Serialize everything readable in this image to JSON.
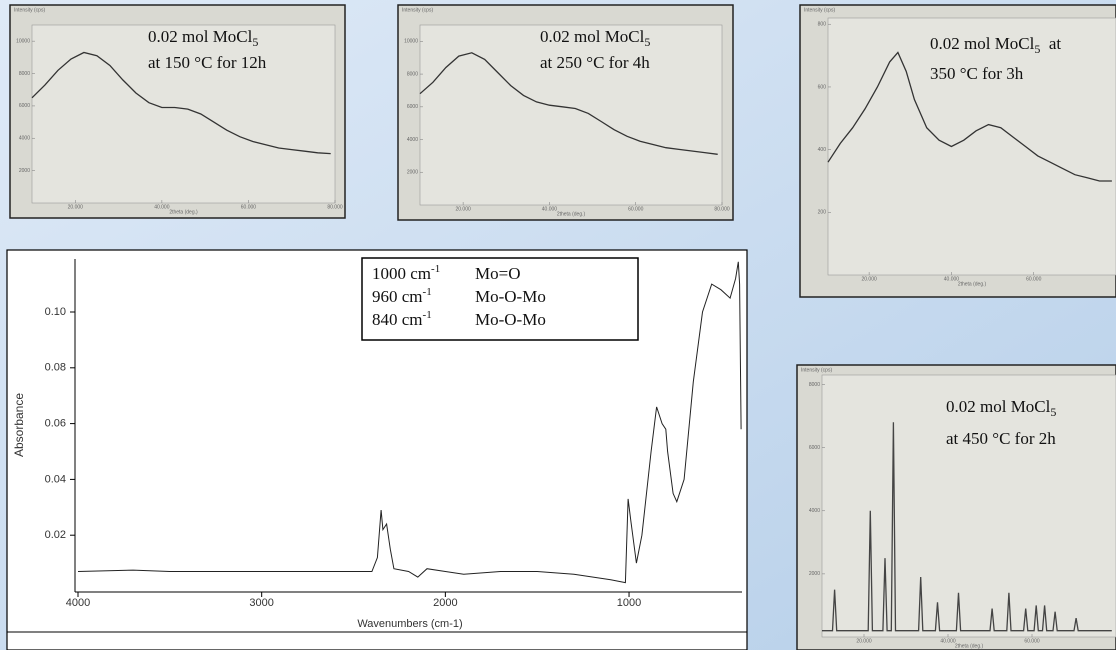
{
  "chart_data": [
    {
      "type": "line",
      "annotation": [
        [
          {
            "text": "0.02 mol MoCl"
          },
          {
            "sub": "5"
          }
        ],
        [
          {
            "text": "at 150 °C for 12h"
          }
        ]
      ],
      "x_label": "2theta (deg.)",
      "y_label": "Intensity (cps)",
      "color": "#333333",
      "xlim": [
        10,
        80
      ],
      "ylim": [
        0,
        11000
      ],
      "xticks": [
        {
          "value": 20,
          "label": "20.000"
        },
        {
          "value": 40,
          "label": "40.000"
        },
        {
          "value": 60,
          "label": "60.000"
        },
        {
          "value": 80,
          "label": "80.000"
        }
      ],
      "yticks": [
        2000,
        4000,
        6000,
        8000,
        10000
      ],
      "x": [
        10,
        13,
        16,
        19,
        22,
        25,
        28,
        31,
        34,
        37,
        40,
        43,
        46,
        49,
        52,
        55,
        58,
        61,
        64,
        67,
        70,
        73,
        76,
        79
      ],
      "values": [
        6500,
        7300,
        8200,
        8900,
        9300,
        9100,
        8500,
        7600,
        6800,
        6200,
        5900,
        5900,
        5800,
        5500,
        5000,
        4500,
        4100,
        3800,
        3600,
        3400,
        3300,
        3200,
        3100,
        3050
      ]
    },
    {
      "type": "line",
      "annotation": [
        [
          {
            "text": "0.02 mol MoCl"
          },
          {
            "sub": "5"
          }
        ],
        [
          {
            "text": "at 250 °C for 4h"
          }
        ]
      ],
      "x_label": "2theta (deg.)",
      "y_label": "Intensity (cps)",
      "color": "#333333",
      "xlim": [
        10,
        80
      ],
      "ylim": [
        0,
        11000
      ],
      "xticks": [
        {
          "value": 20,
          "label": "20.000"
        },
        {
          "value": 40,
          "label": "40.000"
        },
        {
          "value": 60,
          "label": "60.000"
        },
        {
          "value": 80,
          "label": "80.000"
        }
      ],
      "yticks": [
        2000,
        4000,
        6000,
        8000,
        10000
      ],
      "x": [
        10,
        13,
        16,
        19,
        22,
        25,
        28,
        31,
        34,
        37,
        40,
        43,
        46,
        49,
        52,
        55,
        58,
        61,
        64,
        67,
        70,
        73,
        76,
        79
      ],
      "values": [
        6800,
        7500,
        8400,
        9100,
        9300,
        8900,
        8100,
        7300,
        6700,
        6300,
        6100,
        6000,
        5900,
        5600,
        5100,
        4600,
        4200,
        3900,
        3700,
        3500,
        3400,
        3300,
        3200,
        3100
      ]
    },
    {
      "type": "line",
      "annotation": [
        [
          {
            "text": "0.02 mol MoCl"
          },
          {
            "sub": "5"
          },
          {
            "text": "  at"
          }
        ],
        [
          {
            "text": "350 °C for 3h"
          }
        ]
      ],
      "x_label": "2theta (deg.)",
      "y_label": "Intensity (cps)",
      "color": "#333333",
      "xlim": [
        10,
        80
      ],
      "ylim": [
        0,
        820
      ],
      "xticks": [
        {
          "value": 20,
          "label": "20.000"
        },
        {
          "value": 40,
          "label": "40.000"
        },
        {
          "value": 60,
          "label": "60.000"
        }
      ],
      "yticks": [
        200,
        400,
        600,
        800
      ],
      "x": [
        10,
        13,
        16,
        19,
        22,
        25,
        27,
        29,
        31,
        34,
        37,
        40,
        43,
        46,
        49,
        52,
        55,
        58,
        61,
        64,
        67,
        70,
        73,
        76,
        79
      ],
      "values": [
        360,
        420,
        470,
        530,
        600,
        680,
        710,
        650,
        560,
        470,
        430,
        410,
        430,
        460,
        480,
        470,
        440,
        410,
        380,
        360,
        340,
        320,
        310,
        300,
        300
      ]
    },
    {
      "type": "line",
      "annotation": [
        [
          {
            "text": "0.02 mol MoCl"
          },
          {
            "sub": "5"
          }
        ],
        [
          {
            "text": "at 450 °C for 2h"
          }
        ]
      ],
      "x_label": "2theta (deg.)",
      "y_label": "Intensity (cps)",
      "color": "#444444",
      "xlim": [
        10,
        80
      ],
      "ylim": [
        0,
        8300
      ],
      "xticks": [
        {
          "value": 20,
          "label": "20.000"
        },
        {
          "value": 40,
          "label": "40.000"
        },
        {
          "value": 60,
          "label": "60.000"
        }
      ],
      "yticks": [
        2000,
        4000,
        6000,
        8000
      ],
      "x": [
        10,
        12.5,
        13,
        13.5,
        20,
        21,
        21.5,
        22,
        24.5,
        25,
        25.5,
        26.5,
        27,
        27.5,
        33,
        33.5,
        34,
        37,
        37.5,
        38,
        42,
        42.5,
        43,
        50,
        50.5,
        51,
        54,
        54.5,
        55,
        58,
        58.5,
        59,
        60.5,
        61,
        61.5,
        62.5,
        63,
        63.5,
        65,
        65.5,
        66,
        70,
        70.5,
        71,
        79
      ],
      "values": [
        200,
        200,
        1500,
        200,
        200,
        200,
        4000,
        200,
        200,
        2500,
        200,
        200,
        6800,
        200,
        200,
        1900,
        200,
        200,
        1100,
        200,
        200,
        1400,
        200,
        200,
        900,
        200,
        200,
        1400,
        200,
        200,
        900,
        200,
        200,
        1000,
        200,
        200,
        1000,
        200,
        200,
        800,
        200,
        200,
        600,
        200,
        200
      ]
    },
    {
      "type": "line",
      "x_label": "Wavenumbers (cm-1)",
      "y_label": "Absorbance",
      "color": "#222222",
      "xlim": [
        4000,
        385
      ],
      "ylim": [
        0,
        0.119
      ],
      "xticks": [
        4000,
        3000,
        2000,
        1000
      ],
      "yticks": [
        0.02,
        0.04,
        0.06,
        {
          "value": 0.1,
          "label": "0.10"
        },
        0.08
      ],
      "legend_rows": [
        {
          "wavenumber": "1000 cm",
          "sup": "-1",
          "assignment": "Mo=O"
        },
        {
          "wavenumber": "960 cm",
          "sup": "-1",
          "assignment": "Mo-O-Mo"
        },
        {
          "wavenumber": "840 cm",
          "sup": "-1",
          "assignment": "Mo-O-Mo"
        }
      ],
      "x": [
        4000,
        3700,
        3500,
        3000,
        2500,
        2400,
        2370,
        2350,
        2340,
        2320,
        2300,
        2280,
        2200,
        2150,
        2100,
        2000,
        1900,
        1700,
        1500,
        1300,
        1100,
        1020,
        1005,
        990,
        960,
        930,
        880,
        850,
        820,
        800,
        790,
        760,
        740,
        700,
        650,
        600,
        550,
        500,
        450,
        420,
        405,
        398,
        390
      ],
      "values": [
        0.007,
        0.0075,
        0.007,
        0.007,
        0.007,
        0.007,
        0.012,
        0.029,
        0.022,
        0.024,
        0.015,
        0.008,
        0.007,
        0.005,
        0.008,
        0.007,
        0.006,
        0.007,
        0.007,
        0.006,
        0.004,
        0.003,
        0.033,
        0.025,
        0.01,
        0.02,
        0.05,
        0.066,
        0.06,
        0.058,
        0.05,
        0.035,
        0.032,
        0.04,
        0.075,
        0.1,
        0.11,
        0.108,
        0.105,
        0.112,
        0.118,
        0.11,
        0.058
      ]
    }
  ]
}
